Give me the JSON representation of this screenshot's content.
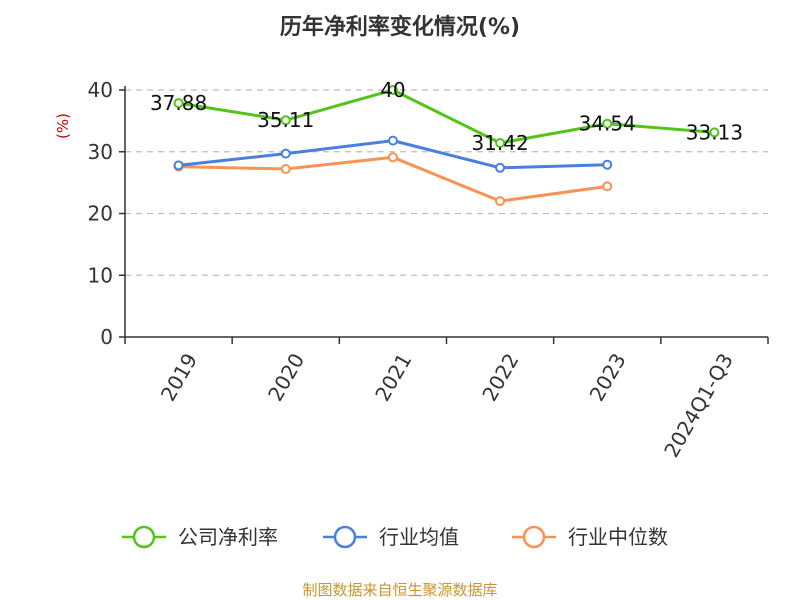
{
  "chart_data": {
    "type": "line",
    "title": "历年净利率变化情况(%)",
    "ylabel": "(%)",
    "xlabel": "",
    "categories": [
      "2019",
      "2020",
      "2021",
      "2022",
      "2023",
      "2024Q1-Q3"
    ],
    "ylim": [
      0,
      40
    ],
    "yticks": [
      0,
      10,
      20,
      30,
      40
    ],
    "grid": "horizontal-dashed",
    "legend_position": "bottom",
    "series": [
      {
        "name": "公司净利率",
        "color": "#52c41a",
        "values": [
          37.88,
          35.11,
          40,
          31.42,
          34.54,
          33.13
        ],
        "labels": [
          "37.88",
          "35.11",
          "40",
          "31.42",
          "34.54",
          "33.13"
        ]
      },
      {
        "name": "行业均值",
        "color": "#4a7fe0",
        "values": [
          27.8,
          29.7,
          31.8,
          27.4,
          27.9,
          null
        ]
      },
      {
        "name": "行业中位数",
        "color": "#f79355",
        "values": [
          27.6,
          27.2,
          29.1,
          22.0,
          24.4,
          null
        ]
      }
    ]
  },
  "source": "制图数据来自恒生聚源数据库"
}
